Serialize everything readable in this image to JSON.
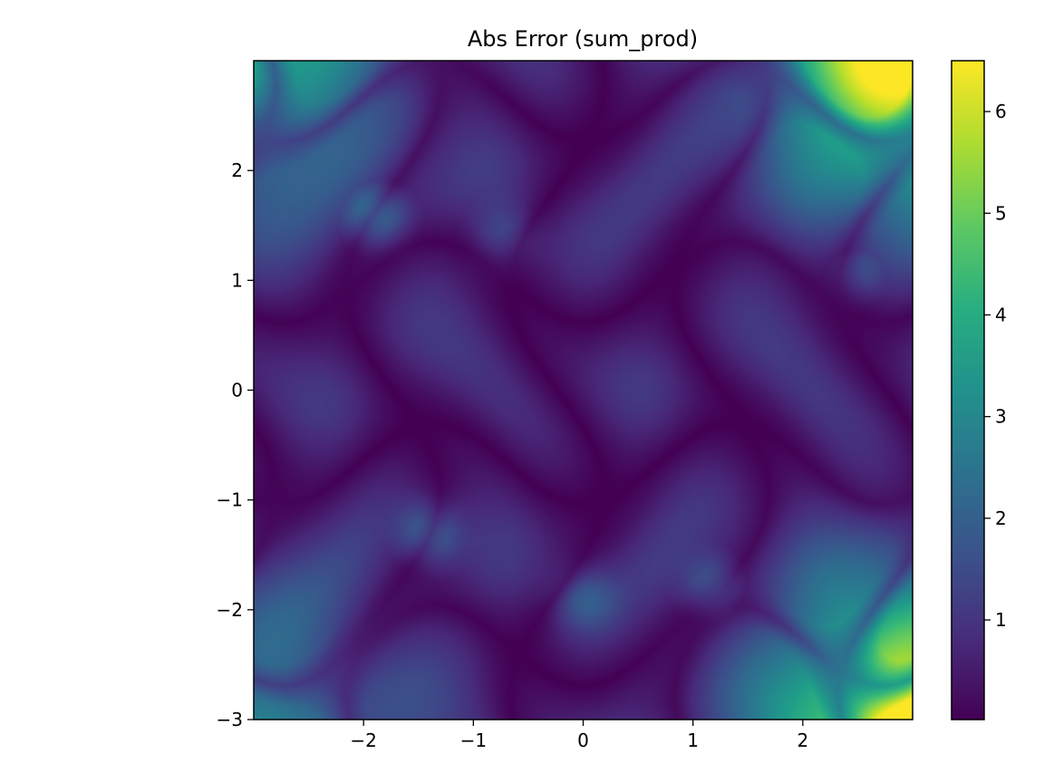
{
  "chart_data": {
    "type": "heatmap",
    "title": "Abs Error (sum_prod)",
    "xlabel": "",
    "ylabel": "",
    "xlim": [
      -3,
      3
    ],
    "ylim": [
      -3,
      3
    ],
    "x_ticks": [
      -2,
      -1,
      0,
      1,
      2
    ],
    "x_tick_labels": [
      "−2",
      "−1",
      "0",
      "1",
      "2"
    ],
    "y_ticks": [
      -3,
      -2,
      -1,
      0,
      1,
      2
    ],
    "y_tick_labels": [
      "−3",
      "−2",
      "−1",
      "0",
      "1",
      "2"
    ],
    "colormap": "viridis",
    "colorbar": {
      "range": [
        0.02,
        6.5
      ],
      "ticks": [
        1,
        2,
        3,
        4,
        5,
        6
      ],
      "tick_labels": [
        "1",
        "2",
        "3",
        "4",
        "5",
        "6"
      ]
    },
    "grid": false,
    "features": [
      {
        "x": -3,
        "y": 3,
        "value": 3.3
      },
      {
        "x": 3,
        "y": 3,
        "value": 6.5
      },
      {
        "x": -3,
        "y": -3,
        "value": 2.2
      },
      {
        "x": 3,
        "y": -3,
        "value": 6.4
      },
      {
        "x": -1.9,
        "y": 1.6,
        "value": 2.3
      },
      {
        "x": -1.4,
        "y": -1.3,
        "value": 1.7
      },
      {
        "x": 1.2,
        "y": -1.8,
        "value": 1.6
      },
      {
        "x": 0.0,
        "y": -1.9,
        "value": 1.3
      },
      {
        "x": 2.5,
        "y": 1.1,
        "value": 1.2
      },
      {
        "x": -0.7,
        "y": 1.4,
        "value": 1.0
      }
    ]
  }
}
